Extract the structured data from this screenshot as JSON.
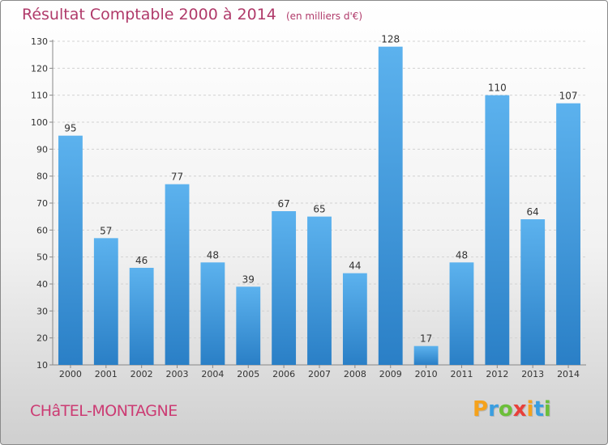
{
  "chart_data": {
    "type": "bar",
    "title": "Résultat Comptable 2000 à 2014",
    "subtitle": "(en milliers d'€)",
    "categories": [
      "2000",
      "2001",
      "2002",
      "2003",
      "2004",
      "2005",
      "2006",
      "2007",
      "2008",
      "2009",
      "2010",
      "2011",
      "2012",
      "2013",
      "2014"
    ],
    "values": [
      95,
      57,
      46,
      77,
      48,
      39,
      67,
      65,
      44,
      128,
      17,
      48,
      110,
      64,
      107
    ],
    "ylim": [
      10,
      130
    ],
    "yticks": [
      10,
      20,
      30,
      40,
      50,
      60,
      70,
      80,
      90,
      100,
      110,
      120,
      130
    ],
    "grid": true,
    "bar_color": "#4a9fe0",
    "xlabel": "",
    "ylabel": ""
  },
  "footer": {
    "commune": "CHâTEL-MONTAGNE",
    "logo_letters": [
      "P",
      "r",
      "o",
      "x",
      "i",
      "t",
      "i"
    ],
    "logo_colors": [
      "#f5a21c",
      "#3a9ee0",
      "#6cbf3a",
      "#e8403a",
      "#f5a21c",
      "#3a9ee0",
      "#6cbf3a"
    ]
  }
}
